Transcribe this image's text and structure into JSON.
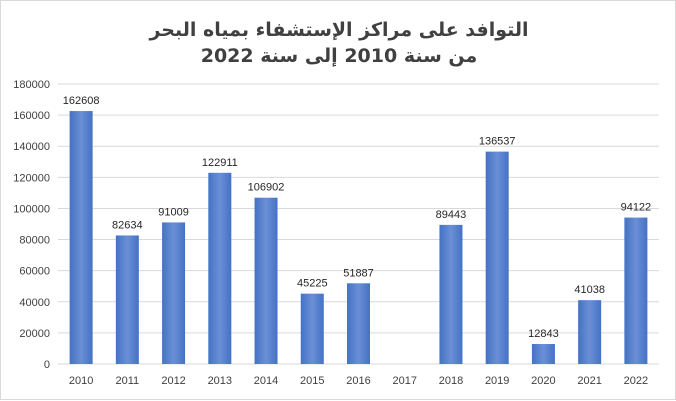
{
  "chart_data": {
    "type": "bar",
    "title": "التوافد على مراكز الإستشفاء بمياه البحر",
    "subtitle": "من سنة 2010 إلى سنة 2022",
    "xlabel": "",
    "ylabel": "",
    "categories": [
      "2010",
      "2011",
      "2012",
      "2013",
      "2014",
      "2015",
      "2016",
      "2017",
      "2018",
      "2019",
      "2020",
      "2021",
      "2022"
    ],
    "series": [
      {
        "values": [
          162608,
          82634,
          91009,
          122911,
          106902,
          45225,
          51887,
          null,
          89443,
          136537,
          12843,
          41038,
          94122
        ]
      }
    ],
    "ylim": [
      0,
      180000
    ],
    "yticks": [
      0,
      20000,
      40000,
      60000,
      80000,
      100000,
      120000,
      140000,
      160000,
      180000
    ],
    "grid": true,
    "legend": "none",
    "data_labels": true,
    "colors": {
      "bar": "#4472c4",
      "bar_light": "#6b8fd6",
      "grid": "#d9d9d9",
      "text": "#404040"
    }
  }
}
